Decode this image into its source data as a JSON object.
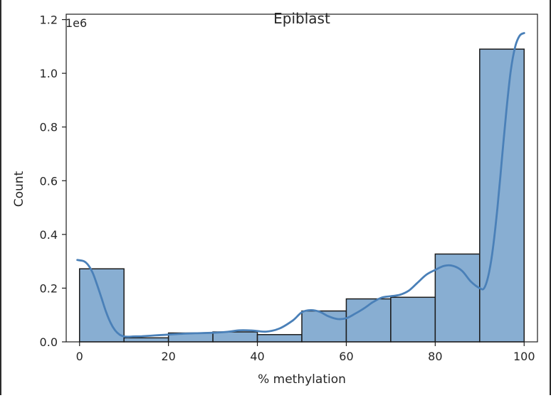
{
  "chart_data": {
    "type": "bar",
    "title": "Epiblast",
    "xlabel": "% methylation",
    "ylabel": "Count",
    "offset_label": "1e6",
    "bin_edges": [
      0,
      10,
      20,
      30,
      40,
      50,
      60,
      70,
      80,
      90,
      100
    ],
    "values": [
      272000,
      15000,
      33000,
      37000,
      27000,
      115000,
      160000,
      166000,
      327000,
      1090000
    ],
    "xlim": [
      -3,
      103
    ],
    "ylim": [
      0,
      1220000
    ],
    "xticks": [
      0,
      20,
      40,
      60,
      80,
      100
    ],
    "yticks": [
      0,
      200000,
      400000,
      600000,
      800000,
      1000000,
      1200000
    ],
    "ytick_labels": [
      "0.0",
      "0.2",
      "0.4",
      "0.6",
      "0.8",
      "1.0",
      "1.2"
    ],
    "kde": {
      "x": [
        -0.5,
        1,
        2,
        3,
        4,
        5,
        6,
        7,
        8,
        9,
        10,
        11,
        12,
        14,
        17,
        20,
        23,
        26,
        30,
        33,
        36,
        39,
        42,
        45,
        48,
        50,
        52,
        54,
        56,
        58,
        60,
        62,
        64,
        66,
        68,
        70,
        72,
        74,
        76,
        78,
        80,
        82,
        84,
        86,
        88,
        90,
        91,
        92,
        93,
        94,
        95,
        96,
        97,
        98,
        99,
        100
      ],
      "y": [
        305000,
        300000,
        285000,
        255000,
        210000,
        160000,
        110000,
        70000,
        43000,
        27000,
        20000,
        19000,
        20000,
        21000,
        24000,
        27000,
        30000,
        32000,
        34000,
        37000,
        43000,
        42000,
        38000,
        50000,
        80000,
        110000,
        118000,
        112000,
        95000,
        85000,
        88000,
        105000,
        125000,
        148000,
        165000,
        170000,
        175000,
        190000,
        220000,
        250000,
        268000,
        283000,
        283000,
        265000,
        225000,
        200000,
        200000,
        250000,
        350000,
        500000,
        680000,
        860000,
        1010000,
        1100000,
        1140000,
        1150000
      ]
    },
    "colors": {
      "bar_fill": "#88aed2",
      "bar_edge": "#1c1c1c",
      "kde_line": "#4a80b8"
    },
    "grid": false,
    "legend": "none"
  }
}
